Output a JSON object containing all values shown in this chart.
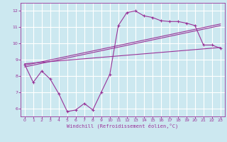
{
  "xlabel": "Windchill (Refroidissement éolien,°C)",
  "background_color": "#cce8f0",
  "line_color": "#993399",
  "grid_color": "#ffffff",
  "xlim": [
    -0.5,
    23.5
  ],
  "ylim": [
    5.5,
    12.5
  ],
  "xticks": [
    0,
    1,
    2,
    3,
    4,
    5,
    6,
    7,
    8,
    9,
    10,
    11,
    12,
    13,
    14,
    15,
    16,
    17,
    18,
    19,
    20,
    21,
    22,
    23
  ],
  "yticks": [
    6,
    7,
    8,
    9,
    10,
    11,
    12
  ],
  "hours": [
    0,
    1,
    2,
    3,
    4,
    5,
    6,
    7,
    8,
    9,
    10,
    11,
    12,
    13,
    14,
    15,
    16,
    17,
    18,
    19,
    20,
    21,
    22,
    23
  ],
  "temp_line": [
    8.7,
    7.6,
    8.3,
    7.8,
    6.9,
    5.8,
    5.9,
    6.3,
    5.9,
    7.0,
    8.1,
    11.1,
    11.9,
    12.0,
    11.7,
    11.6,
    11.4,
    11.35,
    11.35,
    11.25,
    11.1,
    9.9,
    9.9,
    9.7
  ],
  "reg_lines": [
    {
      "x0": 0,
      "y0": 8.75,
      "x1": 23,
      "y1": 9.75
    },
    {
      "x0": 0,
      "y0": 8.65,
      "x1": 23,
      "y1": 11.2
    },
    {
      "x0": 0,
      "y0": 8.55,
      "x1": 23,
      "y1": 11.1
    }
  ]
}
